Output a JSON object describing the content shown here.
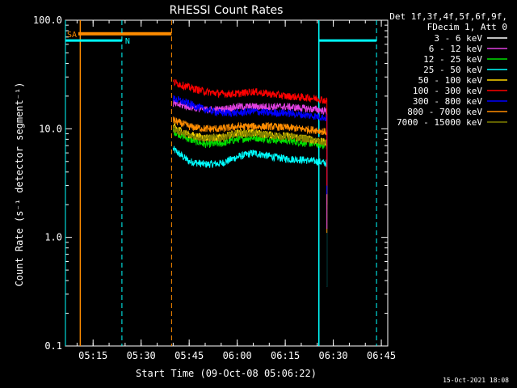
{
  "chart_data": {
    "type": "line",
    "title": "RHESSI Count Rates",
    "xlabel": "Start Time (09-Oct-08 05:06:22)",
    "ylabel": "Count Rate (s⁻¹ detector segment⁻¹)",
    "y_scale": "log",
    "ylim": [
      0.1,
      100
    ],
    "y_ticks": [
      "0.1",
      "1.0",
      "10.0",
      "100.0"
    ],
    "xlim": [
      "05:06:22",
      "06:47:00"
    ],
    "x_ticks": [
      "05:15",
      "05:30",
      "05:45",
      "06:00",
      "06:15",
      "06:30",
      "06:45"
    ],
    "legend_header": [
      "Det 1f,3f,4f,5f,6f,9f,",
      "FDecim 1, Att 0"
    ],
    "legend_position": "right-outside",
    "series": [
      {
        "name": "3 - 6 keV",
        "color": "#000000",
        "x": [
          "05:40",
          "05:45",
          "05:50",
          "05:55",
          "06:00",
          "06:05",
          "06:10",
          "06:15",
          "06:20",
          "06:25",
          "06:28"
        ],
        "values": [
          11,
          9.0,
          8.5,
          8.5,
          9.5,
          9.5,
          9.0,
          9.0,
          8.5,
          8.0,
          7.5
        ]
      },
      {
        "name": "6 - 12 keV",
        "color": "#e040e0",
        "x": [
          "05:40",
          "05:45",
          "05:50",
          "05:55",
          "06:00",
          "06:05",
          "06:10",
          "06:15",
          "06:20",
          "06:25",
          "06:28"
        ],
        "values": [
          17,
          16,
          15,
          15,
          16,
          16,
          16,
          16,
          15.5,
          15,
          14.5
        ]
      },
      {
        "name": "12 - 25 keV",
        "color": "#00e000",
        "x": [
          "05:40",
          "05:45",
          "05:50",
          "05:55",
          "06:00",
          "06:05",
          "06:10",
          "06:15",
          "06:20",
          "06:25",
          "06:28"
        ],
        "values": [
          9.5,
          8.0,
          7.2,
          7.3,
          8.0,
          8.3,
          8.0,
          7.8,
          7.5,
          7.2,
          7.0
        ]
      },
      {
        "name": "25 - 50 keV",
        "color": "#00ffff",
        "x": [
          "05:40",
          "05:45",
          "05:50",
          "05:55",
          "06:00",
          "06:05",
          "06:10",
          "06:15",
          "06:20",
          "06:25",
          "06:28"
        ],
        "values": [
          6.5,
          5.0,
          4.7,
          4.8,
          5.5,
          6.0,
          5.6,
          5.3,
          5.2,
          5.0,
          4.8
        ]
      },
      {
        "name": "50 - 100 keV",
        "color": "#ffd700",
        "x": [
          "05:40",
          "05:45",
          "05:50",
          "05:55",
          "06:00",
          "06:05",
          "06:10",
          "06:15",
          "06:20",
          "06:25",
          "06:28"
        ],
        "values": [
          10.5,
          8.8,
          8.3,
          8.3,
          9.2,
          9.2,
          8.8,
          8.6,
          8.3,
          7.8,
          7.4
        ]
      },
      {
        "name": "100 - 300 keV",
        "color": "#ff0000",
        "x": [
          "05:40",
          "05:45",
          "05:50",
          "05:55",
          "06:00",
          "06:05",
          "06:10",
          "06:15",
          "06:20",
          "06:25",
          "06:28"
        ],
        "values": [
          27,
          24,
          22,
          21,
          21,
          22,
          21,
          20,
          19.5,
          19,
          18
        ]
      },
      {
        "name": "300 - 800 keV",
        "color": "#0000ff",
        "x": [
          "05:40",
          "05:45",
          "05:50",
          "05:55",
          "06:00",
          "06:05",
          "06:10",
          "06:15",
          "06:20",
          "06:25",
          "06:28"
        ],
        "values": [
          19,
          17,
          15,
          14,
          14,
          14.5,
          14,
          14,
          13.5,
          13,
          12.5
        ]
      },
      {
        "name": "800 - 7000 keV",
        "color": "#ff8c00",
        "x": [
          "05:40",
          "05:45",
          "05:50",
          "05:55",
          "06:00",
          "06:05",
          "06:10",
          "06:15",
          "06:20",
          "06:25",
          "06:28"
        ],
        "values": [
          12,
          10.5,
          10,
          10,
          10.5,
          10.5,
          10.5,
          10.3,
          10,
          9.7,
          9.3
        ]
      },
      {
        "name": "7000 - 15000 keV",
        "color": "#808000",
        "x": [
          "05:40",
          "05:45",
          "05:50",
          "05:55",
          "06:00",
          "06:05",
          "06:10",
          "06:15",
          "06:20",
          "06:25",
          "06:28"
        ],
        "values": [
          10,
          8.6,
          8.2,
          8.2,
          9.0,
          9.0,
          8.7,
          8.5,
          8.2,
          7.7,
          7.3
        ]
      }
    ],
    "markers": [
      {
        "label": "SA",
        "color": "#ff8c00",
        "x_start": "05:06:22",
        "x_end": "05:39:30",
        "level": 75
      },
      {
        "label": "N",
        "color": "#00ffff",
        "x_start": "05:06:22",
        "x_end": "05:24:00",
        "level": 65
      },
      {
        "label": "",
        "color": "#00ffff",
        "x_start": "06:25:30",
        "x_end": "06:43:30",
        "level": 65
      }
    ],
    "footer_date": "15-Oct-2021 18:08"
  }
}
